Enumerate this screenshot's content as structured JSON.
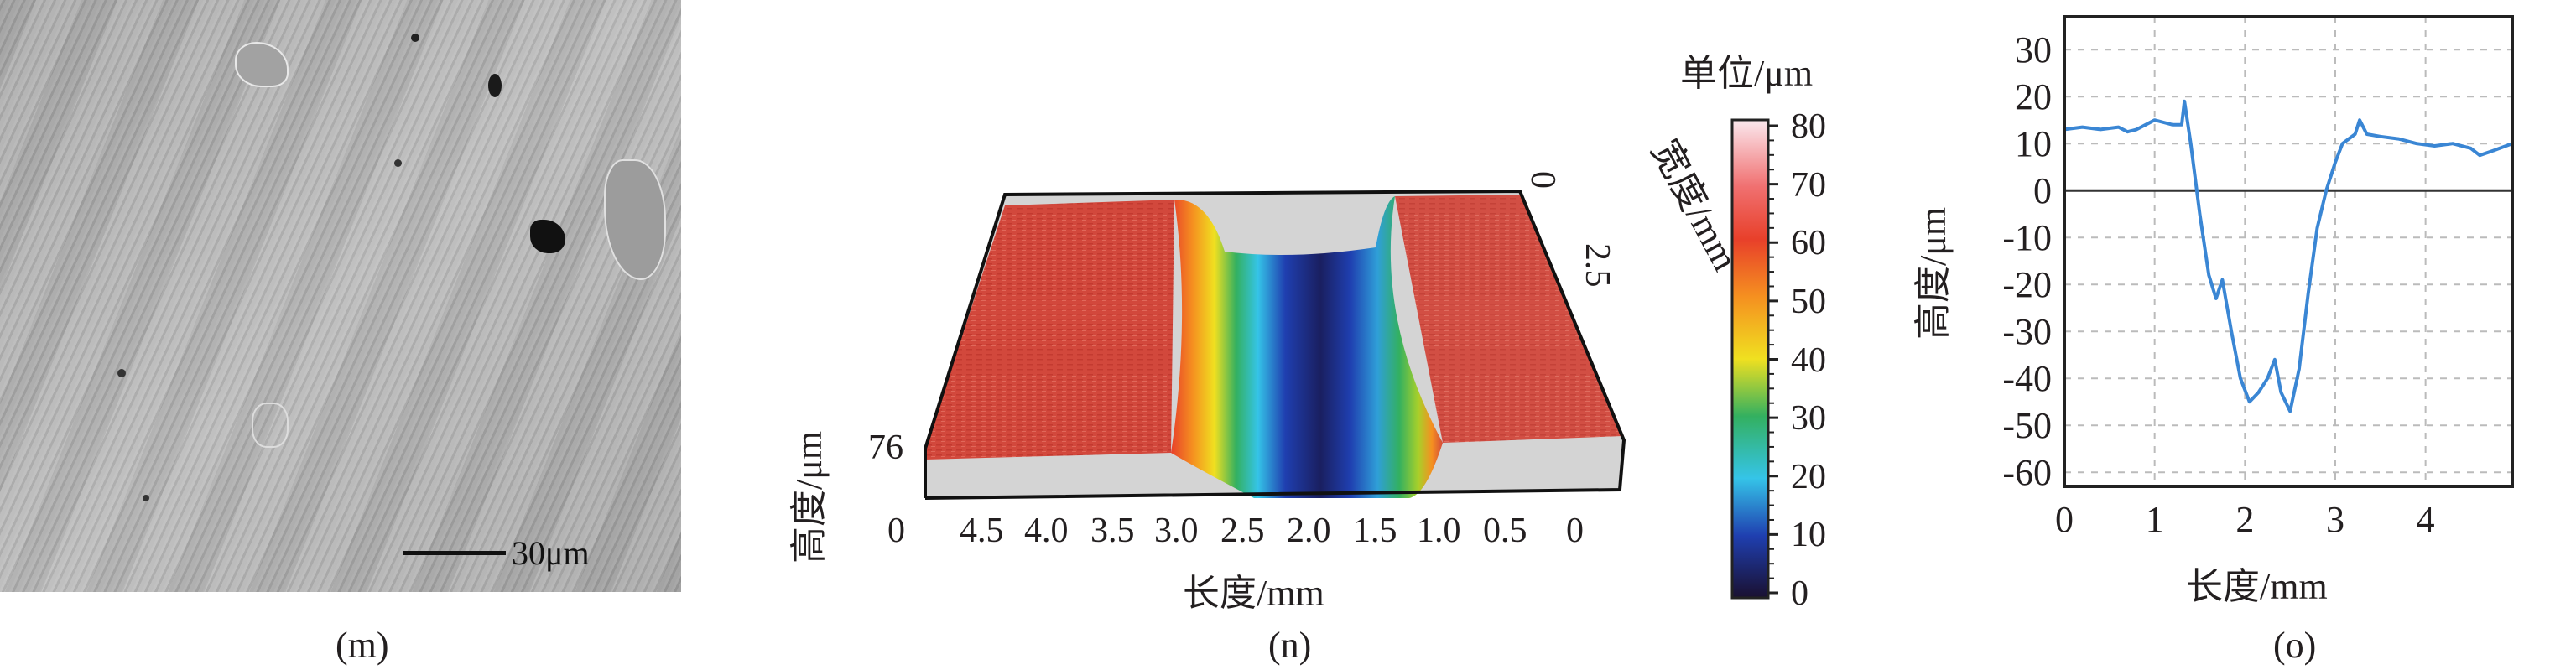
{
  "panel_m": {
    "label": "(m)",
    "scale_bar": "30μm"
  },
  "panel_n": {
    "label": "(n)",
    "colorbar_title": "单位/μm",
    "colorbar_ticks": [
      "80",
      "70",
      "60",
      "50",
      "40",
      "30",
      "20",
      "10",
      "0"
    ],
    "x_axis_label": "长度/mm",
    "x_ticks": [
      "4.5",
      "4.0",
      "3.5",
      "3.0",
      "2.5",
      "2.0",
      "1.5",
      "1.0",
      "0.5",
      "0"
    ],
    "z_axis_label": "高度/μm",
    "z_ticks": [
      "0",
      "76"
    ],
    "y_axis_label": "宽度/mm",
    "y_ticks": [
      "0",
      "2.5"
    ],
    "colormap": [
      "#1a1030",
      "#1f3fb0",
      "#2f7fd8",
      "#35c4e8",
      "#33b060",
      "#a8d02a",
      "#f0e020",
      "#f59020",
      "#e8402a",
      "#f07070",
      "#fbe8ee"
    ]
  },
  "panel_o": {
    "label": "(o)"
  },
  "chart_data": [
    {
      "type": "line",
      "panel": "(o)",
      "xlabel": "长度/mm",
      "ylabel": "高度/μm",
      "xlim": [
        0,
        4.96
      ],
      "ylim": [
        -63,
        37
      ],
      "x_ticks": [
        "0",
        "1",
        "2",
        "3",
        "4"
      ],
      "y_ticks": [
        "30",
        "20",
        "10",
        "0",
        "-10",
        "-20",
        "-30",
        "-40",
        "-50",
        "-60"
      ],
      "grid": true,
      "zero_line": true,
      "series_color": "#3a86d4",
      "x": [
        0,
        0.2,
        0.4,
        0.6,
        0.7,
        0.8,
        0.9,
        1.0,
        1.1,
        1.2,
        1.3,
        1.33,
        1.4,
        1.5,
        1.6,
        1.68,
        1.75,
        1.85,
        1.95,
        2.05,
        2.15,
        2.25,
        2.33,
        2.4,
        2.5,
        2.6,
        2.7,
        2.8,
        2.9,
        3.0,
        3.08,
        3.15,
        3.22,
        3.27,
        3.35,
        3.5,
        3.7,
        3.9,
        4.1,
        4.3,
        4.5,
        4.6,
        4.75,
        4.96
      ],
      "y": [
        13,
        13.5,
        13,
        13.5,
        12.5,
        13,
        14,
        15,
        14.5,
        14,
        14,
        19,
        10,
        -5,
        -18,
        -23,
        -19,
        -30,
        -40,
        -45,
        -43,
        -40,
        -36,
        -43,
        -47,
        -38,
        -22,
        -8,
        0,
        6,
        10,
        11,
        12,
        15,
        12,
        11.5,
        11,
        10,
        9.5,
        10,
        9,
        7.5,
        8.5,
        10
      ]
    },
    {
      "type": "heatmap",
      "panel": "(n)",
      "description_values": "3D surface height map",
      "colorbar_range": [
        0,
        80
      ],
      "x_range_mm": [
        0,
        4.5
      ],
      "z_range_um": [
        0,
        76
      ]
    }
  ]
}
